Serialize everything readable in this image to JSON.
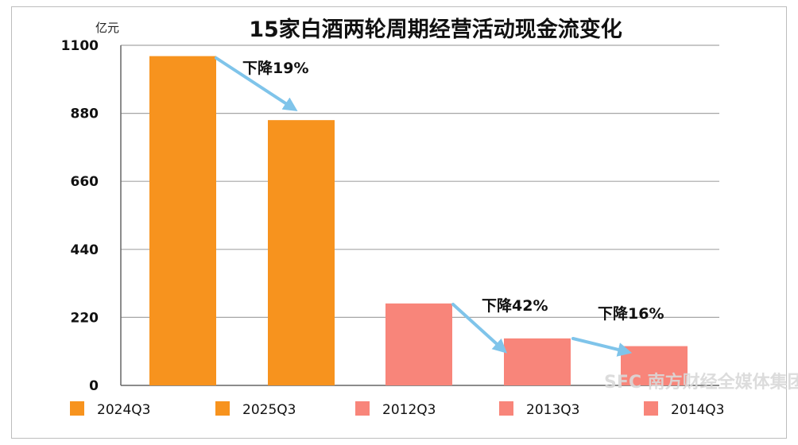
{
  "chart_data": {
    "type": "bar",
    "title": "15家白酒两轮周期经营活动现金流变化",
    "ylabel": "亿元",
    "ylim": [
      0,
      1100
    ],
    "yticks": [
      0,
      220,
      440,
      660,
      880,
      1100
    ],
    "grid": true,
    "legend_position": "bottom",
    "categories": [
      "2024Q3",
      "2025Q3",
      "2012Q3",
      "2013Q3",
      "2014Q3"
    ],
    "values": [
      1065,
      858,
      265,
      152,
      127
    ],
    "bar_colors": [
      "#f7931e",
      "#f7931e",
      "#f8857a",
      "#f8857a",
      "#f8857a"
    ],
    "annotations": [
      {
        "text": "下降19%",
        "from": 0,
        "to": 1
      },
      {
        "text": "下降42%",
        "from": 2,
        "to": 3
      },
      {
        "text": "下降16%",
        "from": 3,
        "to": 4
      }
    ]
  },
  "colors": {
    "arrow": "#7fc4ea",
    "grid": "#a6a6a6",
    "axis": "#666666"
  },
  "watermark": "SFC 南方财经全媒体集团"
}
